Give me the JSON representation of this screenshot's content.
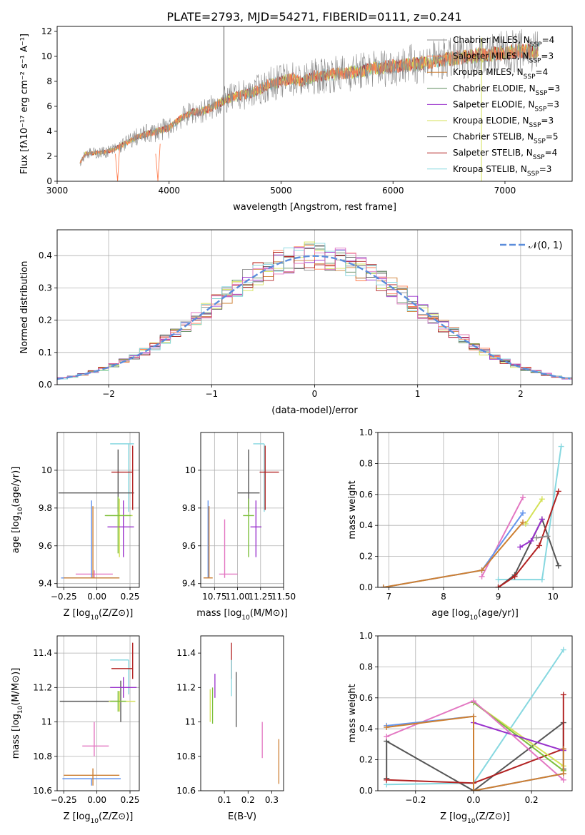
{
  "title": "PLATE=2793, MJD=54271, FIBERID=0111, z=0.241",
  "colors": {
    "chabrier_miles": "#8c8c8c",
    "salpeter_miles": "#ff7f50",
    "kroupa_miles": "#cd7f32",
    "chabrier_elodie": "#5e8c5e",
    "salpeter_elodie": "#9932cc",
    "kroupa_elodie": "#d4e157",
    "chabrier_stelib": "#555555",
    "salpeter_stelib": "#b22222",
    "kroupa_stelib": "#87d8e0",
    "pink": "#e377c2",
    "blue": "#6495ed",
    "green": "#7cbf3c",
    "gaussian": "#5b8ddb"
  },
  "legend": [
    {
      "key": "chabrier_miles",
      "label": "Chabrier MILES, N",
      "sub": "SSP",
      "tail": "=4"
    },
    {
      "key": "salpeter_miles",
      "label": "Salpeter MILES, N",
      "sub": "SSP",
      "tail": "=3"
    },
    {
      "key": "kroupa_miles",
      "label": "Kroupa MILES, N",
      "sub": "SSP",
      "tail": "=4"
    },
    {
      "key": "chabrier_elodie",
      "label": "Chabrier ELODIE, N",
      "sub": "SSP",
      "tail": "=3"
    },
    {
      "key": "salpeter_elodie",
      "label": "Salpeter ELODIE, N",
      "sub": "SSP",
      "tail": "=3"
    },
    {
      "key": "kroupa_elodie",
      "label": "Kroupa ELODIE, N",
      "sub": "SSP",
      "tail": "=3"
    },
    {
      "key": "chabrier_stelib",
      "label": "Chabrier STELIB, N",
      "sub": "SSP",
      "tail": "=5"
    },
    {
      "key": "salpeter_stelib",
      "label": "Salpeter STELIB, N",
      "sub": "SSP",
      "tail": "=4"
    },
    {
      "key": "kroupa_stelib",
      "label": "Kroupa STELIB, N",
      "sub": "SSP",
      "tail": "=3"
    }
  ],
  "chart_data": [
    {
      "id": "spectrum",
      "type": "line",
      "xlabel": "wavelength [Angstrom, rest frame]",
      "ylabel": "Flux [f",
      "ylabel_full": "Flux [fλ10⁻¹⁷ erg cm⁻² s⁻¹ A⁻¹]",
      "xlim": [
        3000,
        7600
      ],
      "ylim": [
        0,
        12.4
      ],
      "xticks": [
        3000,
        4000,
        5000,
        6000,
        7000
      ],
      "yticks": [
        0,
        2,
        4,
        6,
        8,
        10,
        12
      ],
      "continuum": [
        [
          3200,
          1.4
        ],
        [
          3250,
          2.2
        ],
        [
          3400,
          2.3
        ],
        [
          3500,
          2.5
        ],
        [
          3600,
          3.0
        ],
        [
          3700,
          3.5
        ],
        [
          3800,
          3.8
        ],
        [
          3900,
          4.0
        ],
        [
          4000,
          4.3
        ],
        [
          4100,
          5.0
        ],
        [
          4200,
          5.5
        ],
        [
          4300,
          5.6
        ],
        [
          4400,
          6.0
        ],
        [
          4500,
          6.5
        ],
        [
          4600,
          6.8
        ],
        [
          4700,
          7.0
        ],
        [
          4800,
          7.3
        ],
        [
          4900,
          7.8
        ],
        [
          5000,
          8.0
        ],
        [
          5100,
          8.2
        ],
        [
          5200,
          8.0
        ],
        [
          5300,
          8.4
        ],
        [
          5400,
          8.5
        ],
        [
          5500,
          8.6
        ],
        [
          5600,
          8.7
        ],
        [
          5700,
          8.8
        ],
        [
          5800,
          9.0
        ],
        [
          5900,
          9.1
        ],
        [
          6000,
          9.2
        ],
        [
          6100,
          9.3
        ],
        [
          6200,
          9.4
        ],
        [
          6300,
          9.5
        ],
        [
          6400,
          9.7
        ],
        [
          6500,
          9.8
        ],
        [
          6600,
          9.9
        ],
        [
          6700,
          10.0
        ],
        [
          6800,
          10.1
        ],
        [
          6900,
          10.2
        ],
        [
          7000,
          10.3
        ],
        [
          7100,
          10.4
        ],
        [
          7200,
          10.4
        ],
        [
          7300,
          10.5
        ]
      ],
      "spikes": [
        [
          4490,
          12.4
        ],
        [
          4490,
          0
        ],
        [
          6790,
          0
        ],
        [
          6790,
          11.5
        ]
      ]
    },
    {
      "id": "residuals",
      "type": "histogram",
      "xlabel": "(data-model)/error",
      "ylabel": "Normed distribution",
      "legend_label": "𝒩(0, 1)",
      "xlim": [
        -2.5,
        2.5
      ],
      "ylim": [
        0,
        0.48
      ],
      "xticks": [
        -2,
        -1,
        0,
        1,
        2
      ],
      "yticks": [
        0,
        0.1,
        0.2,
        0.3,
        0.4
      ],
      "bin_width": 0.1
    },
    {
      "id": "age_vs_Z",
      "type": "scatter",
      "xlabel": "Z [log",
      "ylabel": "age  [log",
      "xlim": [
        -0.3,
        0.32
      ],
      "ylim": [
        9.38,
        10.2
      ],
      "xticks": [
        -0.25,
        0.0,
        0.25
      ],
      "xticklabels": [
        "−0.25",
        "0.00",
        "0.25"
      ],
      "yticks": [
        9.4,
        9.6,
        9.8,
        10.0
      ],
      "points": [
        {
          "c": "kroupa_stelib",
          "x": 0.24,
          "y": 10.14,
          "xerr": [
            0.14,
            0.04
          ],
          "yerr": [
            0.36,
            0.0
          ]
        },
        {
          "c": "chabrier_stelib",
          "x": 0.16,
          "y": 9.88,
          "xerr": [
            0.45,
            0.12
          ],
          "yerr": [
            0.1,
            0.23
          ]
        },
        {
          "c": "salpeter_stelib",
          "x": 0.27,
          "y": 9.99,
          "xerr": [
            0.16,
            0.0
          ],
          "yerr": [
            0.2,
            0.14
          ]
        },
        {
          "c": "kroupa_elodie",
          "x": 0.17,
          "y": 9.76,
          "xerr": [
            0.1,
            0.1
          ],
          "yerr": [
            0.22,
            0.09
          ]
        },
        {
          "c": "salpeter_elodie",
          "x": 0.2,
          "y": 9.7,
          "xerr": [
            0.12,
            0.08
          ],
          "yerr": [
            0.16,
            0.14
          ]
        },
        {
          "c": "green",
          "x": 0.16,
          "y": 9.76,
          "xerr": [
            0.1,
            0.1
          ],
          "yerr": [
            0.2,
            0.1
          ]
        },
        {
          "c": "pink",
          "x": -0.02,
          "y": 9.45,
          "xerr": [
            0.14,
            0.14
          ],
          "yerr": [
            0.02,
            0.02
          ]
        },
        {
          "c": "blue",
          "x": -0.04,
          "y": 9.43,
          "xerr": [
            0.23,
            0.21
          ],
          "yerr": [
            0.0,
            0.41
          ]
        },
        {
          "c": "kroupa_miles",
          "x": -0.03,
          "y": 9.43,
          "xerr": [
            0.22,
            0.2
          ],
          "yerr": [
            0.0,
            0.38
          ]
        }
      ]
    },
    {
      "id": "age_vs_mass",
      "type": "scatter",
      "xlabel": "mass [log",
      "ylabel": "",
      "xlim": [
        10.6,
        11.5
      ],
      "ylim": [
        9.38,
        10.2
      ],
      "xticks": [
        10.75,
        11.0,
        11.25,
        11.5
      ],
      "xticklabels": [
        "10.75",
        "11.00",
        "11.25",
        "11.50"
      ],
      "yticks": [
        9.4,
        9.6,
        9.8,
        10.0
      ],
      "points": [
        {
          "c": "kroupa_stelib",
          "x": 11.29,
          "y": 10.14,
          "xerr": [
            0.12,
            0.0
          ],
          "yerr": [
            0.36,
            0.0
          ]
        },
        {
          "c": "chabrier_stelib",
          "x": 11.12,
          "y": 9.88,
          "xerr": [
            0.12,
            0.12
          ],
          "yerr": [
            0.1,
            0.23
          ]
        },
        {
          "c": "salpeter_stelib",
          "x": 11.3,
          "y": 9.99,
          "xerr": [
            0.06,
            0.15
          ],
          "yerr": [
            0.2,
            0.14
          ]
        },
        {
          "c": "green",
          "x": 11.12,
          "y": 9.76,
          "xerr": [
            0.06,
            0.06
          ],
          "yerr": [
            0.22,
            0.09
          ]
        },
        {
          "c": "salpeter_elodie",
          "x": 11.2,
          "y": 9.7,
          "xerr": [
            0.06,
            0.06
          ],
          "yerr": [
            0.16,
            0.14
          ]
        },
        {
          "c": "pink",
          "x": 10.86,
          "y": 9.45,
          "xerr": [
            0.06,
            0.14
          ],
          "yerr": [
            0.02,
            0.29
          ]
        },
        {
          "c": "blue",
          "x": 10.68,
          "y": 9.43,
          "xerr": [
            0.04,
            0.0
          ],
          "yerr": [
            0.0,
            0.41
          ]
        },
        {
          "c": "kroupa_miles",
          "x": 10.69,
          "y": 9.43,
          "xerr": [
            0.06,
            0.04
          ],
          "yerr": [
            0.0,
            0.38
          ]
        }
      ]
    },
    {
      "id": "massweight_vs_age",
      "type": "line",
      "xlabel": "age  [log",
      "ylabel": "mass weight",
      "xlim": [
        6.8,
        10.35
      ],
      "ylim": [
        0,
        1.0
      ],
      "xticks": [
        7,
        8,
        9,
        10
      ],
      "yticks": [
        0.0,
        0.2,
        0.4,
        0.6,
        0.8,
        1.0
      ],
      "series": [
        {
          "c": "kroupa_stelib",
          "x": [
            9.0,
            9.8,
            10.15
          ],
          "y": [
            0.05,
            0.05,
            0.91
          ]
        },
        {
          "c": "chabrier_stelib",
          "x": [
            9.0,
            9.3,
            9.8,
            10.1
          ],
          "y": [
            0.0,
            0.08,
            0.44,
            0.14
          ]
        },
        {
          "c": "salpeter_stelib",
          "x": [
            9.0,
            9.3,
            9.75,
            10.1
          ],
          "y": [
            0.0,
            0.07,
            0.27,
            0.62
          ]
        },
        {
          "c": "kroupa_elodie",
          "x": [
            9.5,
            9.8
          ],
          "y": [
            0.41,
            0.57
          ]
        },
        {
          "c": "salpeter_elodie",
          "x": [
            9.4,
            9.6,
            9.8
          ],
          "y": [
            0.26,
            0.3,
            0.44
          ]
        },
        {
          "c": "pink",
          "x": [
            8.7,
            9.45
          ],
          "y": [
            0.07,
            0.58
          ]
        },
        {
          "c": "blue",
          "x": [
            6.9,
            8.7,
            9.45
          ],
          "y": [
            0.0,
            0.11,
            0.48
          ]
        },
        {
          "c": "kroupa_miles",
          "x": [
            6.9,
            8.7,
            9.45
          ],
          "y": [
            0.0,
            0.11,
            0.42
          ]
        },
        {
          "c": "chabrier_miles",
          "x": [
            9.7,
            9.9
          ],
          "y": [
            0.32,
            0.33
          ]
        }
      ]
    },
    {
      "id": "mass_vs_Z",
      "type": "scatter",
      "xlabel": "Z [log",
      "ylabel": "mass [log",
      "xlim": [
        -0.3,
        0.32
      ],
      "ylim": [
        10.6,
        11.5
      ],
      "xticks": [
        -0.25,
        0.0,
        0.25
      ],
      "xticklabels": [
        "−0.25",
        "0.00",
        "0.25"
      ],
      "yticks": [
        10.6,
        10.8,
        11.0,
        11.2,
        11.4
      ],
      "points": [
        {
          "c": "kroupa_stelib",
          "x": 0.24,
          "y": 11.36,
          "xerr": [
            0.14,
            0.0
          ],
          "yerr": [
            0.2,
            0.0
          ]
        },
        {
          "c": "salpeter_stelib",
          "x": 0.27,
          "y": 11.31,
          "xerr": [
            0.16,
            0.0
          ],
          "yerr": [
            0.06,
            0.15
          ]
        },
        {
          "c": "chabrier_stelib",
          "x": 0.18,
          "y": 11.12,
          "xerr": [
            0.46,
            0.0
          ],
          "yerr": [
            0.12,
            0.12
          ]
        },
        {
          "c": "kroupa_elodie",
          "x": 0.17,
          "y": 11.12,
          "xerr": [
            0.08,
            0.12
          ],
          "yerr": [
            0.06,
            0.06
          ]
        },
        {
          "c": "salpeter_elodie",
          "x": 0.2,
          "y": 11.2,
          "xerr": [
            0.1,
            0.1
          ],
          "yerr": [
            0.06,
            0.06
          ]
        },
        {
          "c": "green",
          "x": 0.16,
          "y": 11.12,
          "xerr": [
            0.06,
            0.06
          ],
          "yerr": [
            0.06,
            0.06
          ]
        },
        {
          "c": "pink",
          "x": -0.02,
          "y": 10.86,
          "xerr": [
            0.09,
            0.11
          ],
          "yerr": [
            0.06,
            0.14
          ]
        },
        {
          "c": "blue",
          "x": -0.04,
          "y": 10.67,
          "xerr": [
            0.22,
            0.22
          ],
          "yerr": [
            0.04,
            0.0
          ]
        },
        {
          "c": "kroupa_miles",
          "x": -0.03,
          "y": 10.69,
          "xerr": [
            0.22,
            0.2
          ],
          "yerr": [
            0.06,
            0.04
          ]
        }
      ]
    },
    {
      "id": "mass_vs_ebv",
      "type": "scatter",
      "xlabel": "E(B-V)",
      "ylabel": "",
      "xlim": [
        0.0,
        0.35
      ],
      "ylim": [
        10.6,
        11.5
      ],
      "xticks": [
        0.1,
        0.2,
        0.3
      ],
      "yticks": [
        10.6,
        10.8,
        11.0,
        11.2,
        11.4
      ],
      "bars": [
        {
          "c": "kroupa_elodie",
          "x": 0.04,
          "y0": 11.0,
          "y1": 11.19
        },
        {
          "c": "salpeter_elodie",
          "x": 0.06,
          "y0": 11.14,
          "y1": 11.28
        },
        {
          "c": "green",
          "x": 0.05,
          "y0": 10.99,
          "y1": 11.2
        },
        {
          "c": "chabrier_stelib",
          "x": 0.15,
          "y0": 10.97,
          "y1": 11.29
        },
        {
          "c": "salpeter_stelib",
          "x": 0.13,
          "y0": 11.25,
          "y1": 11.46
        },
        {
          "c": "kroupa_stelib",
          "x": 0.13,
          "y0": 11.15,
          "y1": 11.36
        },
        {
          "c": "pink",
          "x": 0.26,
          "y0": 10.79,
          "y1": 11.0
        },
        {
          "c": "kroupa_miles",
          "x": 0.33,
          "y0": 10.64,
          "y1": 10.9
        }
      ]
    },
    {
      "id": "massweight_vs_Z",
      "type": "line",
      "xlabel": "Z [log",
      "ylabel": "mass weight",
      "xlim": [
        -0.33,
        0.34
      ],
      "ylim": [
        0,
        1.0
      ],
      "xticks": [
        -0.2,
        0.0,
        0.2
      ],
      "xticklabels": [
        "−0.2",
        "0.0",
        "0.2"
      ],
      "yticks": [
        0.0,
        0.2,
        0.4,
        0.6,
        0.8,
        1.0
      ],
      "series": [
        {
          "c": "kroupa_stelib",
          "x": [
            -0.3,
            0.0,
            0.31
          ],
          "y": [
            0.04,
            0.05,
            0.91
          ]
        },
        {
          "c": "chabrier_stelib",
          "x": [
            -0.3,
            -0.3,
            0.0,
            0.31,
            0.31
          ],
          "y": [
            0.08,
            0.32,
            0.0,
            0.44,
            0.14
          ]
        },
        {
          "c": "salpeter_stelib",
          "x": [
            -0.3,
            0.0,
            0.31,
            0.31
          ],
          "y": [
            0.07,
            0.05,
            0.27,
            0.62
          ]
        },
        {
          "c": "kroupa_elodie",
          "x": [
            0.0,
            0.31
          ],
          "y": [
            0.57,
            0.16
          ]
        },
        {
          "c": "green",
          "x": [
            0.0,
            0.31
          ],
          "y": [
            0.57,
            0.13
          ]
        },
        {
          "c": "salpeter_elodie",
          "x": [
            0.0,
            0.31
          ],
          "y": [
            0.44,
            0.26
          ]
        },
        {
          "c": "pink",
          "x": [
            -0.3,
            0.0,
            0.31
          ],
          "y": [
            0.35,
            0.58,
            0.07
          ]
        },
        {
          "c": "blue",
          "x": [
            -0.3,
            0.0,
            0.0,
            0.31
          ],
          "y": [
            0.42,
            0.48,
            0.0,
            0.11
          ]
        },
        {
          "c": "kroupa_miles",
          "x": [
            -0.3,
            0.0,
            0.0,
            0.31,
            0.31
          ],
          "y": [
            0.41,
            0.48,
            0.0,
            0.11,
            0.27
          ]
        }
      ]
    }
  ]
}
